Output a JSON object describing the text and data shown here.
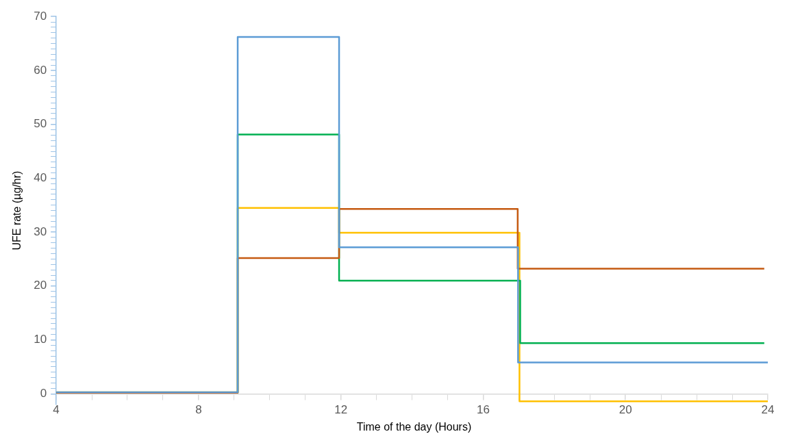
{
  "chart_data": {
    "type": "step",
    "xlabel": "Time of the day (Hours)",
    "ylabel": "UFE rate (µg/hr)",
    "xlim": [
      4,
      24
    ],
    "ylim": [
      -2,
      70
    ],
    "xticks": [
      4,
      {
        "value": 5,
        "label": null
      },
      {
        "value": 6,
        "label": null
      },
      {
        "value": 7,
        "label": null
      },
      8,
      {
        "value": 9,
        "label": null
      },
      {
        "value": 10,
        "label": null
      },
      {
        "value": 11,
        "label": null
      },
      12,
      {
        "value": 13,
        "label": null
      },
      {
        "value": 14,
        "label": null
      },
      {
        "value": 15,
        "label": null
      },
      16,
      {
        "value": 17,
        "label": null
      },
      {
        "value": 18,
        "label": null
      },
      {
        "value": 19,
        "label": null
      },
      20,
      {
        "value": 21,
        "label": null
      },
      {
        "value": 22,
        "label": null
      },
      {
        "value": 23,
        "label": null
      },
      24
    ],
    "yticks": [
      0,
      {
        "value": 1,
        "label": null
      },
      {
        "value": 2,
        "label": null
      },
      {
        "value": 3,
        "label": null
      },
      {
        "value": 4,
        "label": null
      },
      {
        "value": 5,
        "label": null
      },
      {
        "value": 6,
        "label": null
      },
      {
        "value": 7,
        "label": null
      },
      {
        "value": 8,
        "label": null
      },
      {
        "value": 9,
        "label": null
      },
      10,
      {
        "value": 11,
        "label": null
      },
      {
        "value": 12,
        "label": null
      },
      {
        "value": 13,
        "label": null
      },
      {
        "value": 14,
        "label": null
      },
      {
        "value": 15,
        "label": null
      },
      {
        "value": 16,
        "label": null
      },
      {
        "value": 17,
        "label": null
      },
      {
        "value": 18,
        "label": null
      },
      {
        "value": 19,
        "label": null
      },
      20,
      {
        "value": 21,
        "label": null
      },
      {
        "value": 22,
        "label": null
      },
      {
        "value": 23,
        "label": null
      },
      {
        "value": 24,
        "label": null
      },
      {
        "value": 25,
        "label": null
      },
      {
        "value": 26,
        "label": null
      },
      {
        "value": 27,
        "label": null
      },
      {
        "value": 28,
        "label": null
      },
      {
        "value": 29,
        "label": null
      },
      30,
      {
        "value": 31,
        "label": null
      },
      {
        "value": 32,
        "label": null
      },
      {
        "value": 33,
        "label": null
      },
      {
        "value": 34,
        "label": null
      },
      {
        "value": 35,
        "label": null
      },
      {
        "value": 36,
        "label": null
      },
      {
        "value": 37,
        "label": null
      },
      {
        "value": 38,
        "label": null
      },
      {
        "value": 39,
        "label": null
      },
      40,
      {
        "value": 41,
        "label": null
      },
      {
        "value": 42,
        "label": null
      },
      {
        "value": 43,
        "label": null
      },
      {
        "value": 44,
        "label": null
      },
      {
        "value": 45,
        "label": null
      },
      {
        "value": 46,
        "label": null
      },
      {
        "value": 47,
        "label": null
      },
      {
        "value": 48,
        "label": null
      },
      {
        "value": 49,
        "label": null
      },
      50,
      {
        "value": 51,
        "label": null
      },
      {
        "value": 52,
        "label": null
      },
      {
        "value": 53,
        "label": null
      },
      {
        "value": 54,
        "label": null
      },
      {
        "value": 55,
        "label": null
      },
      {
        "value": 56,
        "label": null
      },
      {
        "value": 57,
        "label": null
      },
      {
        "value": 58,
        "label": null
      },
      {
        "value": 59,
        "label": null
      },
      60,
      {
        "value": 61,
        "label": null
      },
      {
        "value": 62,
        "label": null
      },
      {
        "value": 63,
        "label": null
      },
      {
        "value": 64,
        "label": null
      },
      {
        "value": 65,
        "label": null
      },
      {
        "value": 66,
        "label": null
      },
      {
        "value": 67,
        "label": null
      },
      {
        "value": 68,
        "label": null
      },
      {
        "value": 69,
        "label": null
      },
      70
    ],
    "grid": false,
    "legend": false,
    "marker": "none",
    "line_style": "solid",
    "series": [
      {
        "color": "#5b9bd5",
        "x": [
          4,
          9.1,
          11.95,
          16.98,
          24
        ],
        "values": [
          0.3,
          66.2,
          27.2,
          5.8,
          5.8
        ]
      },
      {
        "color": "#c55a11",
        "x": [
          4,
          9.1,
          11.95,
          16.97,
          23.9
        ],
        "values": [
          0.2,
          25.2,
          34.3,
          23.2,
          23.2
        ]
      },
      {
        "color": "#00b050",
        "x": [
          4,
          9.1,
          11.95,
          17.04,
          23.9
        ],
        "values": [
          0.2,
          48.1,
          21.0,
          9.4,
          9.4
        ]
      },
      {
        "color": "#ffc000",
        "x": [
          4,
          9.1,
          11.95,
          17.02,
          24
        ],
        "values": [
          0.3,
          34.5,
          29.9,
          -1.4,
          -1.4
        ]
      }
    ]
  }
}
